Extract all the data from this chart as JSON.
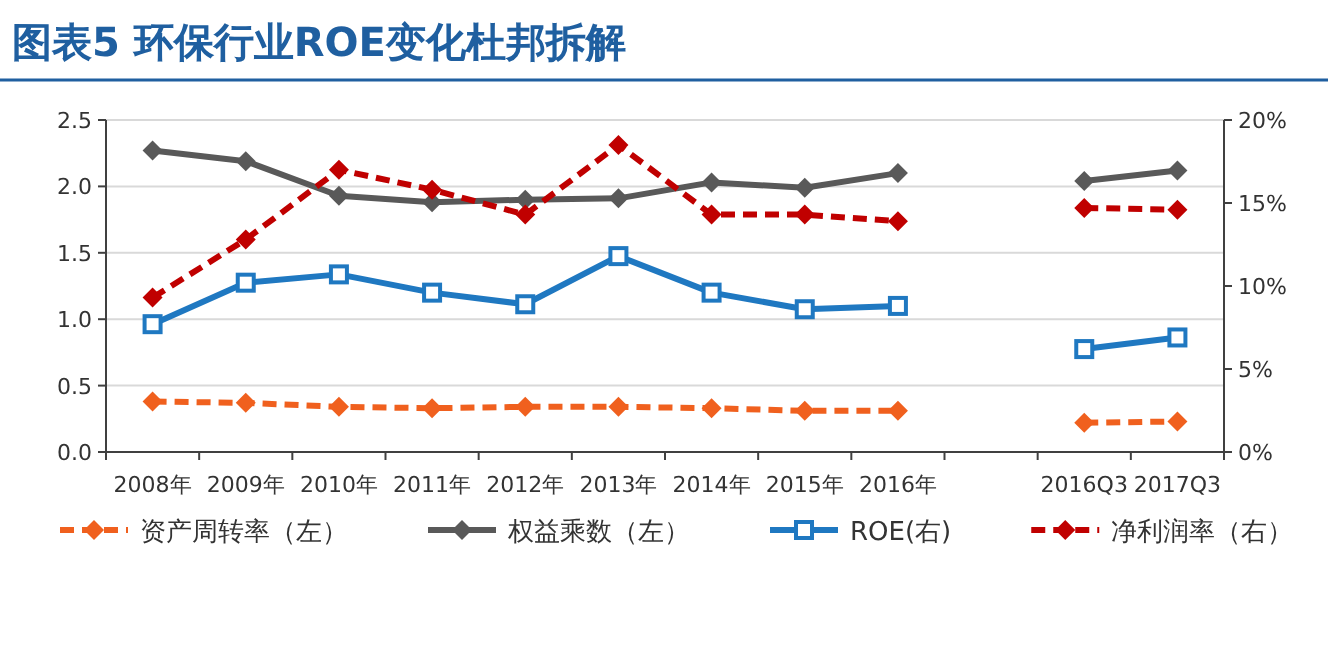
{
  "chart_data": {
    "type": "line",
    "title": "图表5  环保行业ROE变化杜邦拆解",
    "categories": [
      "2008年",
      "2009年",
      "2010年",
      "2011年",
      "2012年",
      "2013年",
      "2014年",
      "2015年",
      "2016年",
      null,
      "2016Q3",
      "2017Q3"
    ],
    "series": [
      {
        "name": "资产周转率（左）",
        "color": "#f0601e",
        "marker": "diamond",
        "line_style": "dashed",
        "values": [
          0.38,
          0.37,
          0.34,
          0.33,
          0.34,
          0.34,
          0.33,
          0.31,
          0.31,
          null,
          0.22,
          0.23
        ]
      },
      {
        "name": "权益乘数（左）",
        "color": "#595959",
        "marker": "diamond",
        "line_style": "solid",
        "values": [
          2.27,
          2.19,
          1.93,
          1.88,
          1.9,
          1.91,
          2.03,
          1.99,
          2.1,
          null,
          2.04,
          2.12
        ]
      },
      {
        "name": "ROE(右)",
        "color": "#1f78c1",
        "marker": "square",
        "line_style": "solid",
        "axis": "y2",
        "values": [
          7.7,
          10.2,
          10.7,
          9.6,
          8.9,
          11.8,
          9.6,
          8.6,
          8.8,
          null,
          6.2,
          6.9
        ]
      },
      {
        "name": "净利润率（右）",
        "color": "#c00000",
        "marker": "diamond",
        "line_style": "dashed",
        "axis": "y2",
        "values": [
          9.3,
          12.8,
          17.0,
          15.8,
          14.3,
          18.5,
          14.3,
          14.3,
          13.9,
          null,
          14.7,
          14.6
        ]
      }
    ],
    "ylim": [
      0,
      2.5
    ],
    "yticks": [
      {
        "value": 0,
        "label": "0.0"
      },
      {
        "value": 0.5,
        "label": "0.5"
      },
      {
        "value": 1,
        "label": "1.0"
      },
      {
        "value": 1.5,
        "label": "1.5"
      },
      {
        "value": 2,
        "label": "2.0"
      },
      {
        "value": 2.5,
        "label": "2.5"
      }
    ],
    "y2lim": [
      0,
      20
    ],
    "y2ticks": [
      {
        "value": 0,
        "label": "0%"
      },
      {
        "value": 5,
        "label": "5%"
      },
      {
        "value": 10,
        "label": "10%"
      },
      {
        "value": 15,
        "label": "15%"
      },
      {
        "value": 20,
        "label": "20%"
      }
    ],
    "grid": "y",
    "legend": "bottom"
  }
}
